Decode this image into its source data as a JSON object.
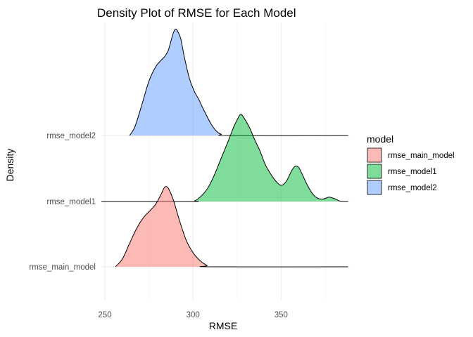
{
  "chart_data": {
    "type": "ridgeline-density",
    "title": "Density Plot of RMSE for Each Model",
    "xlabel": "RMSE",
    "ylabel": "Density",
    "xlim": [
      248,
      389
    ],
    "xticks": [
      250,
      300,
      350
    ],
    "yticks": [
      "rmse_main_model",
      "rmse_model1",
      "rmse_model2"
    ],
    "grid": true,
    "legend": {
      "title": "model",
      "position": "right",
      "entries": [
        "rmse_main_model",
        "rmse_model1",
        "rmse_model2"
      ]
    },
    "series": [
      {
        "name": "rmse_main_model",
        "color": "#F8766D",
        "baseline_level": 0,
        "x": [
          256,
          260,
          264,
          268,
          272,
          276,
          279,
          282,
          284,
          286,
          289,
          292,
          296,
          300,
          304,
          308,
          310,
          388
        ],
        "density": [
          0.0,
          0.13,
          0.38,
          0.62,
          0.8,
          0.92,
          1.02,
          1.18,
          1.29,
          1.27,
          1.07,
          0.78,
          0.44,
          0.23,
          0.1,
          0.02,
          0.0,
          0.0
        ]
      },
      {
        "name": "rmse_model1",
        "color": "#00BA38",
        "baseline_level": 1,
        "x": [
          248,
          299,
          301,
          304,
          308,
          312,
          316,
          320,
          323,
          325,
          327,
          329,
          332,
          335,
          338,
          341,
          344,
          347,
          350,
          353,
          356,
          358,
          360,
          362,
          365,
          368,
          371,
          374,
          377,
          380,
          383,
          386,
          388
        ],
        "density": [
          0.0,
          0.0,
          0.01,
          0.07,
          0.2,
          0.42,
          0.7,
          0.98,
          1.2,
          1.32,
          1.41,
          1.35,
          1.2,
          1.0,
          0.82,
          0.6,
          0.45,
          0.33,
          0.26,
          0.33,
          0.5,
          0.57,
          0.55,
          0.44,
          0.26,
          0.12,
          0.05,
          0.04,
          0.07,
          0.05,
          0.01,
          0.0,
          0.0
        ]
      },
      {
        "name": "rmse_model2",
        "color": "#619CFF",
        "baseline_level": 2,
        "x": [
          264,
          267,
          271,
          275,
          279,
          282,
          284,
          286,
          288,
          289,
          290,
          291,
          293,
          295,
          298,
          301,
          303,
          306,
          310,
          313,
          316,
          321,
          388
        ],
        "density": [
          0.0,
          0.14,
          0.5,
          0.88,
          1.12,
          1.22,
          1.28,
          1.38,
          1.58,
          1.67,
          1.72,
          1.7,
          1.57,
          1.28,
          0.92,
          0.7,
          0.6,
          0.42,
          0.2,
          0.08,
          0.02,
          0.0,
          0.0
        ]
      }
    ]
  }
}
